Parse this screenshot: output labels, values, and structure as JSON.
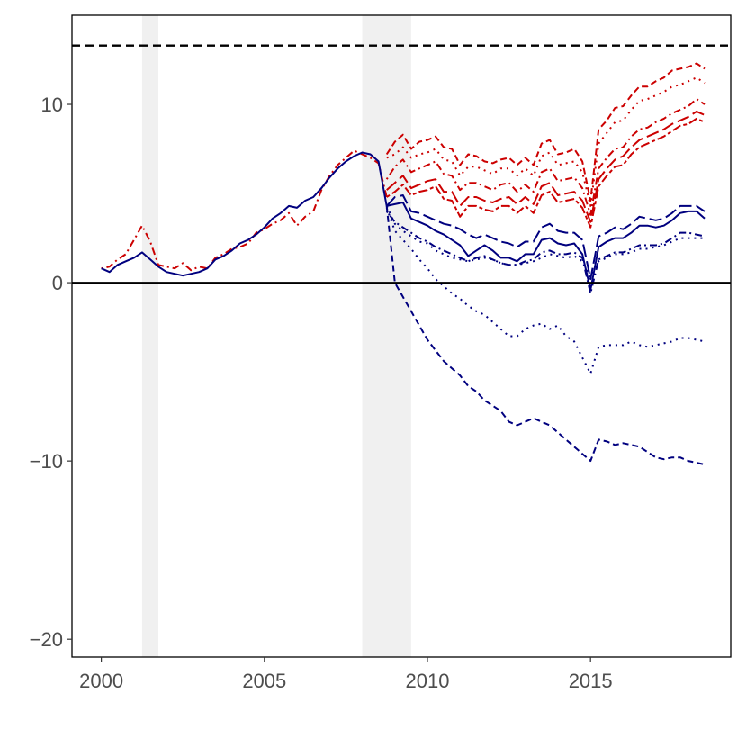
{
  "chart_data": {
    "type": "line",
    "title": "",
    "xlabel": "",
    "ylabel": "",
    "xlim": [
      1999.1,
      2019.3
    ],
    "ylim": [
      -21,
      15
    ],
    "x_ticks": [
      2000,
      2005,
      2010,
      2015
    ],
    "x_tick_labels": [
      "2000",
      "2005",
      "2010",
      "2015"
    ],
    "y_ticks": [
      -20,
      -10,
      0,
      10
    ],
    "y_tick_labels": [
      "−20",
      "−10",
      "0",
      "10"
    ],
    "grid": false,
    "legend": "none",
    "shaded_periods": [
      [
        2001.25,
        2001.75
      ],
      [
        2008.0,
        2009.5
      ]
    ],
    "reference_lines": [
      {
        "y": 13.3,
        "style": "dashed",
        "color": "#000000"
      },
      {
        "y": 0,
        "style": "solid",
        "color": "#000000"
      }
    ],
    "colors": {
      "red": "#cc0000",
      "navy": "#00007f",
      "shade": "#f0f0f0"
    },
    "common_path": {
      "x": [
        2000.0,
        2000.25,
        2000.5,
        2000.75,
        2001.0,
        2001.25,
        2001.5,
        2001.75,
        2002.0,
        2002.25,
        2002.5,
        2002.75,
        2003.0,
        2003.25,
        2003.5,
        2003.75,
        2004.0,
        2004.25,
        2004.5,
        2004.75,
        2005.0,
        2005.25,
        2005.5,
        2005.75,
        2006.0,
        2006.25,
        2006.5,
        2006.75,
        2007.0,
        2007.25,
        2007.5,
        2007.75,
        2008.0,
        2008.25,
        2008.5,
        2008.75
      ],
      "red": [
        0.8,
        0.9,
        1.3,
        1.6,
        2.4,
        3.2,
        2.3,
        1.0,
        0.9,
        0.8,
        1.1,
        0.7,
        0.9,
        0.8,
        1.4,
        1.6,
        1.9,
        2.0,
        2.2,
        2.8,
        3.0,
        3.3,
        3.5,
        3.9,
        3.2,
        3.7,
        4.0,
        5.2,
        6.0,
        6.6,
        7.0,
        7.4,
        7.2,
        7.0,
        6.7,
        4.8
      ],
      "navy": [
        0.8,
        0.6,
        1.0,
        1.2,
        1.4,
        1.7,
        1.3,
        0.9,
        0.6,
        0.5,
        0.4,
        0.5,
        0.6,
        0.8,
        1.3,
        1.5,
        1.8,
        2.2,
        2.4,
        2.7,
        3.1,
        3.6,
        3.9,
        4.3,
        4.2,
        4.6,
        4.8,
        5.3,
        5.9,
        6.4,
        6.8,
        7.1,
        7.3,
        7.2,
        6.8,
        4.3
      ]
    },
    "branch_x": [
      2008.75,
      2009.0,
      2009.25,
      2009.5,
      2009.75,
      2010.0,
      2010.25,
      2010.5,
      2010.75,
      2011.0,
      2011.25,
      2011.5,
      2011.75,
      2012.0,
      2012.25,
      2012.5,
      2012.75,
      2013.0,
      2013.25,
      2013.5,
      2013.75,
      2014.0,
      2014.25,
      2014.5,
      2014.75,
      2015.0,
      2015.25,
      2015.5,
      2015.75,
      2016.0,
      2016.25,
      2016.5,
      2016.75,
      2017.0,
      2017.25,
      2017.5,
      2017.75,
      2018.0,
      2018.25,
      2018.5
    ],
    "series": [
      {
        "color": "red",
        "dash": "short",
        "values": [
          7.2,
          7.9,
          8.3,
          7.5,
          7.9,
          8.0,
          8.2,
          7.6,
          7.5,
          6.6,
          7.2,
          7.1,
          6.8,
          6.7,
          6.9,
          7.0,
          6.6,
          7.0,
          6.6,
          7.8,
          8.0,
          7.2,
          7.3,
          7.5,
          6.8,
          4.6,
          8.6,
          9.1,
          9.8,
          9.9,
          10.5,
          11.0,
          11.0,
          11.3,
          11.5,
          11.9,
          12.0,
          12.1,
          12.3,
          12.0
        ]
      },
      {
        "color": "red",
        "dash": "dotted",
        "values": [
          7.0,
          7.2,
          7.6,
          7.0,
          7.2,
          7.3,
          7.5,
          6.9,
          6.8,
          6.0,
          6.5,
          6.5,
          6.3,
          6.1,
          6.4,
          6.4,
          6.0,
          6.4,
          6.0,
          7.1,
          7.3,
          6.6,
          6.7,
          6.8,
          6.2,
          4.3,
          7.8,
          8.4,
          9.0,
          9.1,
          9.7,
          10.2,
          10.3,
          10.5,
          10.7,
          11.0,
          11.1,
          11.3,
          11.5,
          11.2
        ]
      },
      {
        "color": "red",
        "dash": "dotdash",
        "values": [
          5.8,
          6.5,
          6.9,
          6.2,
          6.4,
          6.6,
          6.8,
          6.1,
          6.0,
          5.2,
          5.6,
          5.6,
          5.4,
          5.2,
          5.5,
          5.6,
          5.1,
          5.5,
          5.1,
          6.2,
          6.4,
          5.7,
          5.8,
          5.9,
          5.3,
          3.8,
          6.4,
          7.0,
          7.5,
          7.6,
          8.2,
          8.6,
          8.7,
          9.0,
          9.2,
          9.5,
          9.7,
          9.9,
          10.3,
          10.0
        ]
      },
      {
        "color": "red",
        "dash": "longdash",
        "values": [
          5.2,
          5.6,
          6.0,
          5.3,
          5.5,
          5.7,
          5.8,
          5.1,
          5.1,
          4.3,
          4.8,
          4.8,
          4.6,
          4.5,
          4.7,
          4.8,
          4.4,
          4.8,
          4.4,
          5.4,
          5.6,
          4.9,
          5.0,
          5.1,
          4.6,
          3.4,
          5.8,
          6.4,
          6.9,
          7.1,
          7.6,
          8.0,
          8.2,
          8.4,
          8.6,
          8.9,
          9.1,
          9.3,
          9.6,
          9.4
        ]
      },
      {
        "color": "red",
        "dash": "twodash",
        "values": [
          4.8,
          5.1,
          5.5,
          4.9,
          5.1,
          5.2,
          5.4,
          4.7,
          4.6,
          3.7,
          4.3,
          4.3,
          4.1,
          4.0,
          4.3,
          4.3,
          3.9,
          4.3,
          3.9,
          4.9,
          5.1,
          4.5,
          4.6,
          4.7,
          4.2,
          3.1,
          5.4,
          6.0,
          6.5,
          6.6,
          7.2,
          7.6,
          7.8,
          8.0,
          8.2,
          8.5,
          8.8,
          8.9,
          9.2,
          9.0
        ]
      },
      {
        "color": "navy",
        "dash": "longdash",
        "values": [
          4.3,
          4.8,
          4.9,
          4.0,
          3.9,
          3.7,
          3.5,
          3.3,
          3.2,
          3.0,
          2.7,
          2.5,
          2.7,
          2.5,
          2.3,
          2.2,
          2.0,
          2.3,
          2.3,
          3.1,
          3.3,
          2.9,
          2.8,
          2.8,
          2.4,
          0.2,
          2.6,
          2.8,
          3.1,
          3.0,
          3.3,
          3.7,
          3.6,
          3.5,
          3.6,
          3.9,
          4.3,
          4.3,
          4.3,
          4.0
        ]
      },
      {
        "color": "navy",
        "dash": "solid",
        "values": [
          4.3,
          4.4,
          4.5,
          3.6,
          3.4,
          3.2,
          2.9,
          2.7,
          2.4,
          2.1,
          1.5,
          1.8,
          2.1,
          1.8,
          1.4,
          1.4,
          1.2,
          1.6,
          1.6,
          2.4,
          2.5,
          2.2,
          2.1,
          2.2,
          1.6,
          -0.4,
          2.0,
          2.3,
          2.5,
          2.5,
          2.8,
          3.2,
          3.2,
          3.1,
          3.2,
          3.5,
          3.9,
          4.0,
          4.0,
          3.6
        ]
      },
      {
        "color": "navy",
        "dash": "dotdash",
        "values": [
          4.0,
          3.4,
          3.1,
          2.8,
          2.5,
          2.3,
          2.0,
          1.8,
          1.6,
          1.4,
          1.2,
          1.4,
          1.5,
          1.3,
          1.1,
          1.0,
          1.0,
          1.2,
          1.3,
          1.7,
          1.8,
          1.6,
          1.6,
          1.7,
          1.4,
          -0.6,
          1.3,
          1.5,
          1.7,
          1.7,
          1.9,
          2.1,
          2.1,
          2.1,
          2.2,
          2.5,
          2.8,
          2.8,
          2.7,
          2.6
        ]
      },
      {
        "color": "navy",
        "dash": "dotted",
        "values": [
          4.2,
          2.9,
          2.4,
          1.9,
          1.3,
          0.8,
          0.2,
          -0.2,
          -0.6,
          -0.9,
          -1.3,
          -1.6,
          -1.8,
          -2.2,
          -2.6,
          -3.0,
          -3.0,
          -2.6,
          -2.4,
          -2.3,
          -2.6,
          -2.4,
          -3.0,
          -3.3,
          -4.2,
          -5.1,
          -3.6,
          -3.5,
          -3.5,
          -3.5,
          -3.3,
          -3.5,
          -3.6,
          -3.5,
          -3.4,
          -3.3,
          -3.1,
          -3.1,
          -3.2,
          -3.3
        ]
      },
      {
        "color": "navy",
        "dash": "short",
        "values": [
          4.3,
          0.0,
          -0.8,
          -1.6,
          -2.4,
          -3.2,
          -3.8,
          -4.4,
          -4.8,
          -5.2,
          -5.8,
          -6.1,
          -6.6,
          -6.9,
          -7.2,
          -7.8,
          -8.0,
          -7.8,
          -7.6,
          -7.8,
          -8.0,
          -8.4,
          -8.8,
          -9.2,
          -9.6,
          -10.0,
          -8.8,
          -8.9,
          -9.1,
          -9.0,
          -9.1,
          -9.2,
          -9.5,
          -9.8,
          -9.9,
          -9.8,
          -9.8,
          -10.0,
          -10.1,
          -10.2
        ]
      },
      {
        "color": "navy",
        "dash": "dotted",
        "values": [
          4.3,
          3.3,
          2.9,
          2.6,
          2.3,
          2.2,
          1.8,
          1.6,
          1.4,
          1.3,
          1.2,
          1.3,
          1.4,
          1.3,
          1.1,
          1.0,
          1.0,
          1.1,
          1.2,
          1.4,
          1.6,
          1.5,
          1.4,
          1.5,
          1.2,
          0.3,
          1.2,
          1.4,
          1.6,
          1.6,
          1.7,
          1.9,
          1.9,
          2.0,
          2.1,
          2.3,
          2.5,
          2.5,
          2.5,
          2.5
        ]
      }
    ]
  }
}
